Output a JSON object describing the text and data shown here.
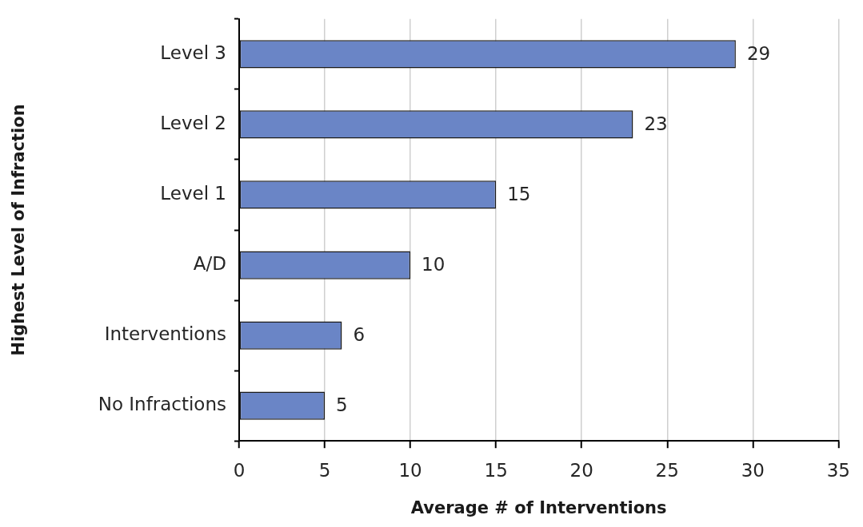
{
  "chart_data": {
    "type": "bar",
    "orientation": "horizontal",
    "xlabel": "Average # of Interventions",
    "ylabel": "Highest Level of Infraction",
    "categories": [
      "Level 3",
      "Level 2",
      "Level 1",
      "A/D",
      "Interventions",
      "No Infractions"
    ],
    "values": [
      29,
      23,
      15,
      10,
      6,
      5
    ],
    "color": "#6a85c6",
    "xlim": [
      0,
      35
    ],
    "xticks": [
      0,
      5,
      10,
      15,
      20,
      25,
      30,
      35
    ],
    "grid": "x",
    "data_labels": true
  }
}
